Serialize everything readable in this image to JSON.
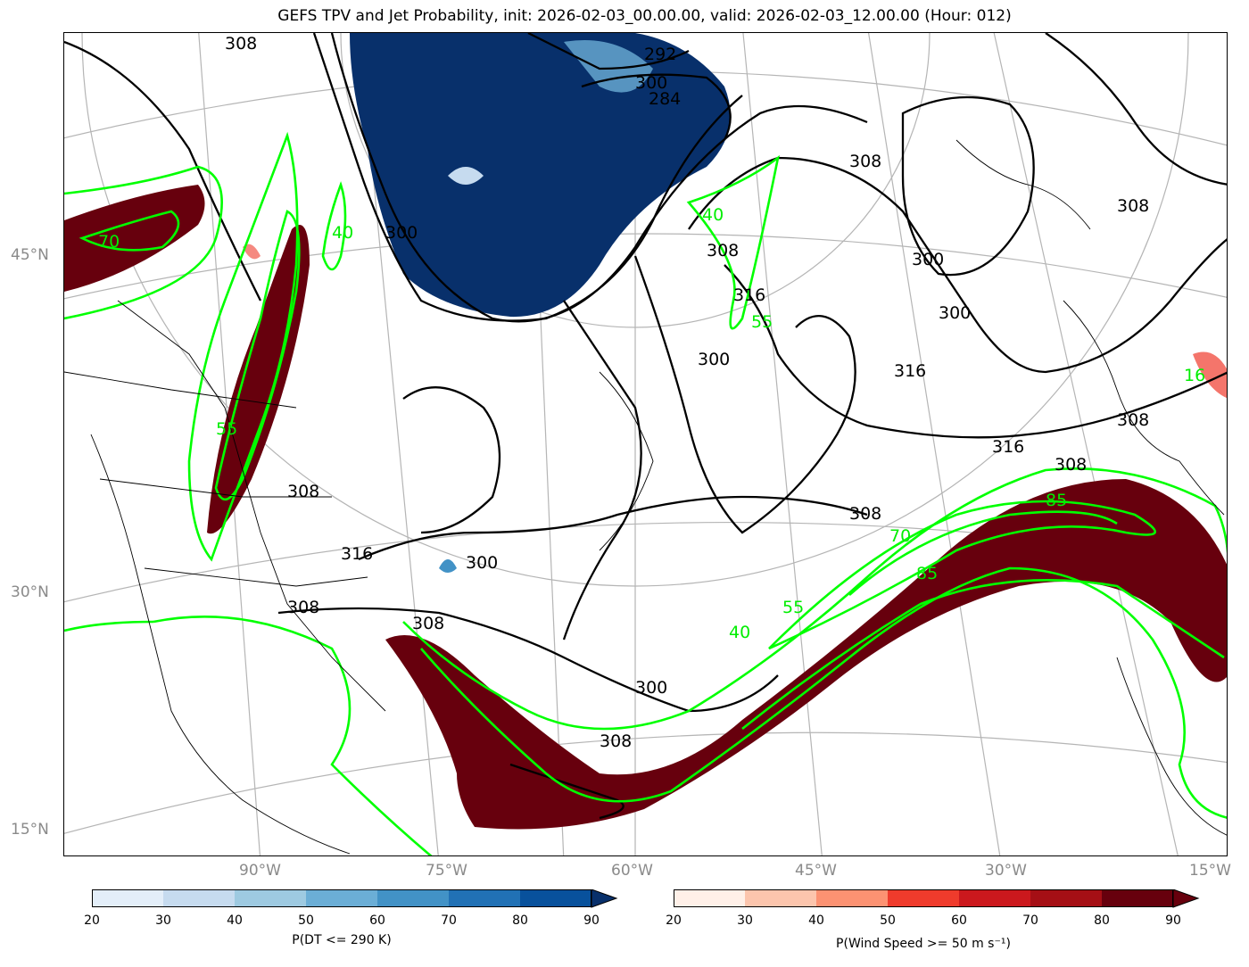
{
  "title": "GEFS TPV and Jet Probability, init: 2026-02-03_00.00.00, valid: 2026-02-03_12.00.00 (Hour: 012)",
  "lat_labels": [
    "45°N",
    "30°N",
    "15°N"
  ],
  "lon_labels": [
    "90°W",
    "75°W",
    "60°W",
    "45°W",
    "30°W",
    "15°W"
  ],
  "theta_contour_labels": [
    "308",
    "300",
    "292",
    "284",
    "300",
    "308",
    "316",
    "300",
    "308",
    "300",
    "300",
    "316",
    "308",
    "316",
    "308",
    "300",
    "308",
    "308",
    "316",
    "308",
    "308",
    "300",
    "308",
    "308"
  ],
  "wind_contour_labels": [
    "70",
    "55",
    "40",
    "40",
    "55",
    "40",
    "55",
    "70",
    "85",
    "85",
    "16"
  ],
  "colorbar_tpv": {
    "label": "P(DT <= 290 K)",
    "ticks": [
      "20",
      "30",
      "40",
      "50",
      "60",
      "70",
      "80",
      "90"
    ],
    "colors": [
      "#e3eef9",
      "#c6dbef",
      "#9ecae1",
      "#6baed6",
      "#4292c6",
      "#2171b5",
      "#08519c",
      "#08306b"
    ]
  },
  "colorbar_jet": {
    "label": "P(Wind Speed >= 50 m s⁻¹)",
    "ticks": [
      "20",
      "30",
      "40",
      "50",
      "60",
      "70",
      "80",
      "90"
    ],
    "colors": [
      "#fff0e8",
      "#fcc5ad",
      "#fc9272",
      "#ef3b2c",
      "#cb181d",
      "#a50f15",
      "#67000d",
      "#67000d"
    ]
  },
  "colors": {
    "tpv_fill": "#08306b",
    "jet_fill": "#67000d",
    "wind_contour": "#00ff00",
    "theta_contour": "#000000",
    "graticule": "#b0b0b0"
  }
}
